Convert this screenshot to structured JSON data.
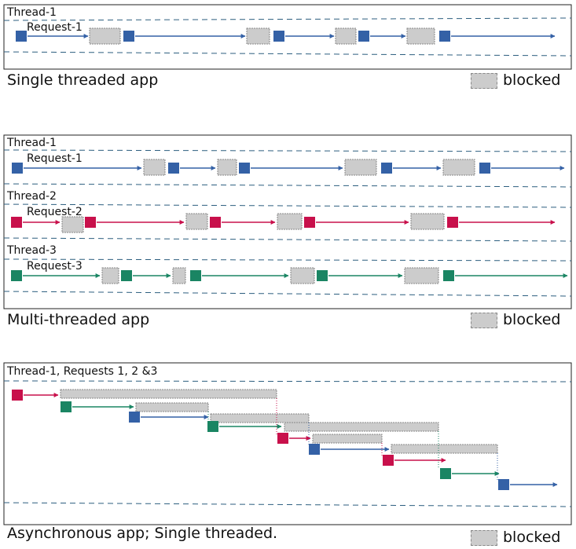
{
  "colors": {
    "request1": "#3461a6",
    "request2": "#c8104b",
    "request3": "#1a8563",
    "blocked_fill": "#cccccc",
    "blocked_stroke": "#888888",
    "panel_border": "#222222",
    "lane_dash": "#2c5e7f"
  },
  "icons": [
    "square-node",
    "arrow-head"
  ],
  "panels": {
    "single": {
      "caption": "Single threaded app",
      "legend": "blocked",
      "threads": [
        {
          "label": "Thread-1",
          "request_label": "Request-1",
          "color_key": "request1"
        }
      ]
    },
    "multi": {
      "caption": "Multi-threaded app",
      "legend": "blocked",
      "threads": [
        {
          "label": "Thread-1",
          "request_label": "Request-1",
          "color_key": "request1"
        },
        {
          "label": "Thread-2",
          "request_label": "Request-2",
          "color_key": "request2"
        },
        {
          "label": "Thread-3",
          "request_label": "Request-3",
          "color_key": "request3"
        }
      ]
    },
    "async": {
      "caption": "Asynchronous app; Single threaded.",
      "legend": "blocked",
      "thread_label": "Thread-1, Requests 1, 2 &3"
    }
  }
}
